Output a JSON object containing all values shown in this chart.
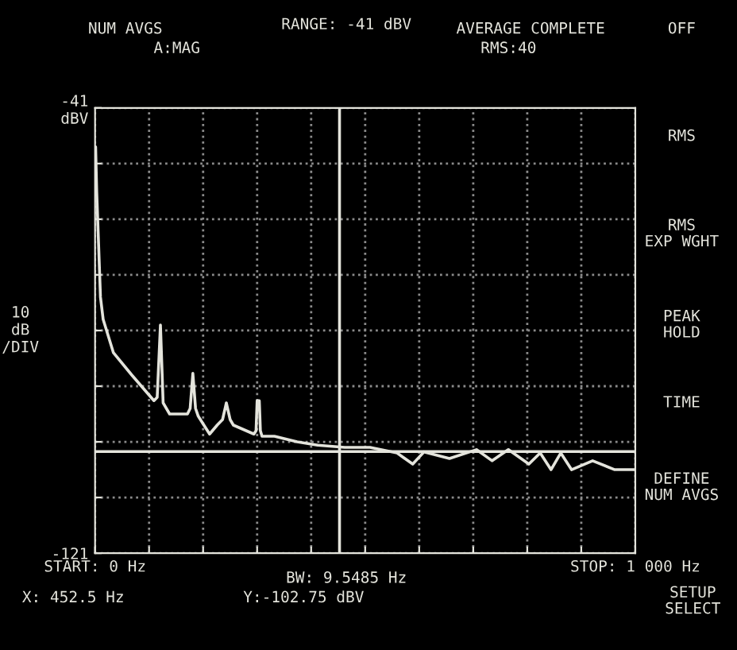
{
  "chart_data": {
    "type": "line",
    "title": "RANGE: -41 dBV",
    "ylabel": "10\ndB\n/DIV",
    "x": [
      1,
      3,
      10,
      15,
      34,
      68,
      109,
      115,
      121,
      126,
      138,
      171,
      176,
      181,
      186,
      191,
      212,
      226,
      236,
      243,
      250,
      256,
      294,
      298,
      300,
      304,
      306,
      309,
      332,
      374,
      412,
      462,
      509,
      559,
      588,
      609,
      656,
      706,
      735,
      765,
      803,
      824,
      844,
      862,
      882,
      921,
      962,
      1000
    ],
    "series": [
      {
        "color": "#e4e4dc",
        "values": [
          -48,
          -56,
          -75,
          -79,
          -85,
          -89,
          -93.6,
          -93,
          -80,
          -94,
          -96,
          -96,
          -95,
          -88.7,
          -95,
          -96.4,
          -99.6,
          -98,
          -97,
          -94,
          -97,
          -98,
          -99.6,
          -99,
          -93.6,
          -93.6,
          -99,
          -100,
          -100,
          -101,
          -101.6,
          -102,
          -102,
          -103,
          -105,
          -102.8,
          -104,
          -102.4,
          -104.4,
          -102.4,
          -105,
          -103,
          -106,
          -103,
          -106,
          -104.4,
          -106,
          -106
        ]
      }
    ],
    "xlim": [
      0,
      1000
    ],
    "xticks": [
      {
        "value": 0,
        "label": "START: 0 Hz"
      },
      {
        "value": 100,
        "label": null
      },
      {
        "value": 200,
        "label": null
      },
      {
        "value": 300,
        "label": null
      },
      {
        "value": 400,
        "label": null
      },
      {
        "value": 500,
        "label": null
      },
      {
        "value": 600,
        "label": null
      },
      {
        "value": 700,
        "label": null
      },
      {
        "value": 800,
        "label": null
      },
      {
        "value": 900,
        "label": null
      },
      {
        "value": 1000,
        "label": "STOP: 1 000 Hz"
      }
    ],
    "ylim": [
      -121,
      -41
    ],
    "yticks": [
      {
        "value": -41,
        "label": "-41\ndBV"
      },
      {
        "value": -51,
        "label": null
      },
      {
        "value": -61,
        "label": null
      },
      {
        "value": -71,
        "label": null
      },
      {
        "value": -81,
        "label": null
      },
      {
        "value": -91,
        "label": null
      },
      {
        "value": -101,
        "label": null
      },
      {
        "value": -111,
        "label": null
      },
      {
        "value": -121,
        "label": "-121"
      }
    ],
    "grid": true,
    "line_style": "solid",
    "ref_lines": [
      {
        "axis": "x",
        "value": 452.5,
        "label": null,
        "color": "#e4e4dc"
      },
      {
        "axis": "y",
        "value": -102.75,
        "label": null,
        "color": "#e4e4dc"
      }
    ],
    "annotations": [
      "NUM AVGS",
      "A:MAG",
      "AVERAGE COMPLETE",
      "RMS:40",
      "OFF",
      "RMS",
      "RMS\nEXP WGHT",
      "PEAK\nHOLD",
      "TIME",
      "DEFINE\nNUM AVGS",
      "SETUP\nSELECT",
      "BW: 9.5485 Hz",
      "X: 452.5 Hz",
      "Y:-102.75 dBV"
    ]
  }
}
